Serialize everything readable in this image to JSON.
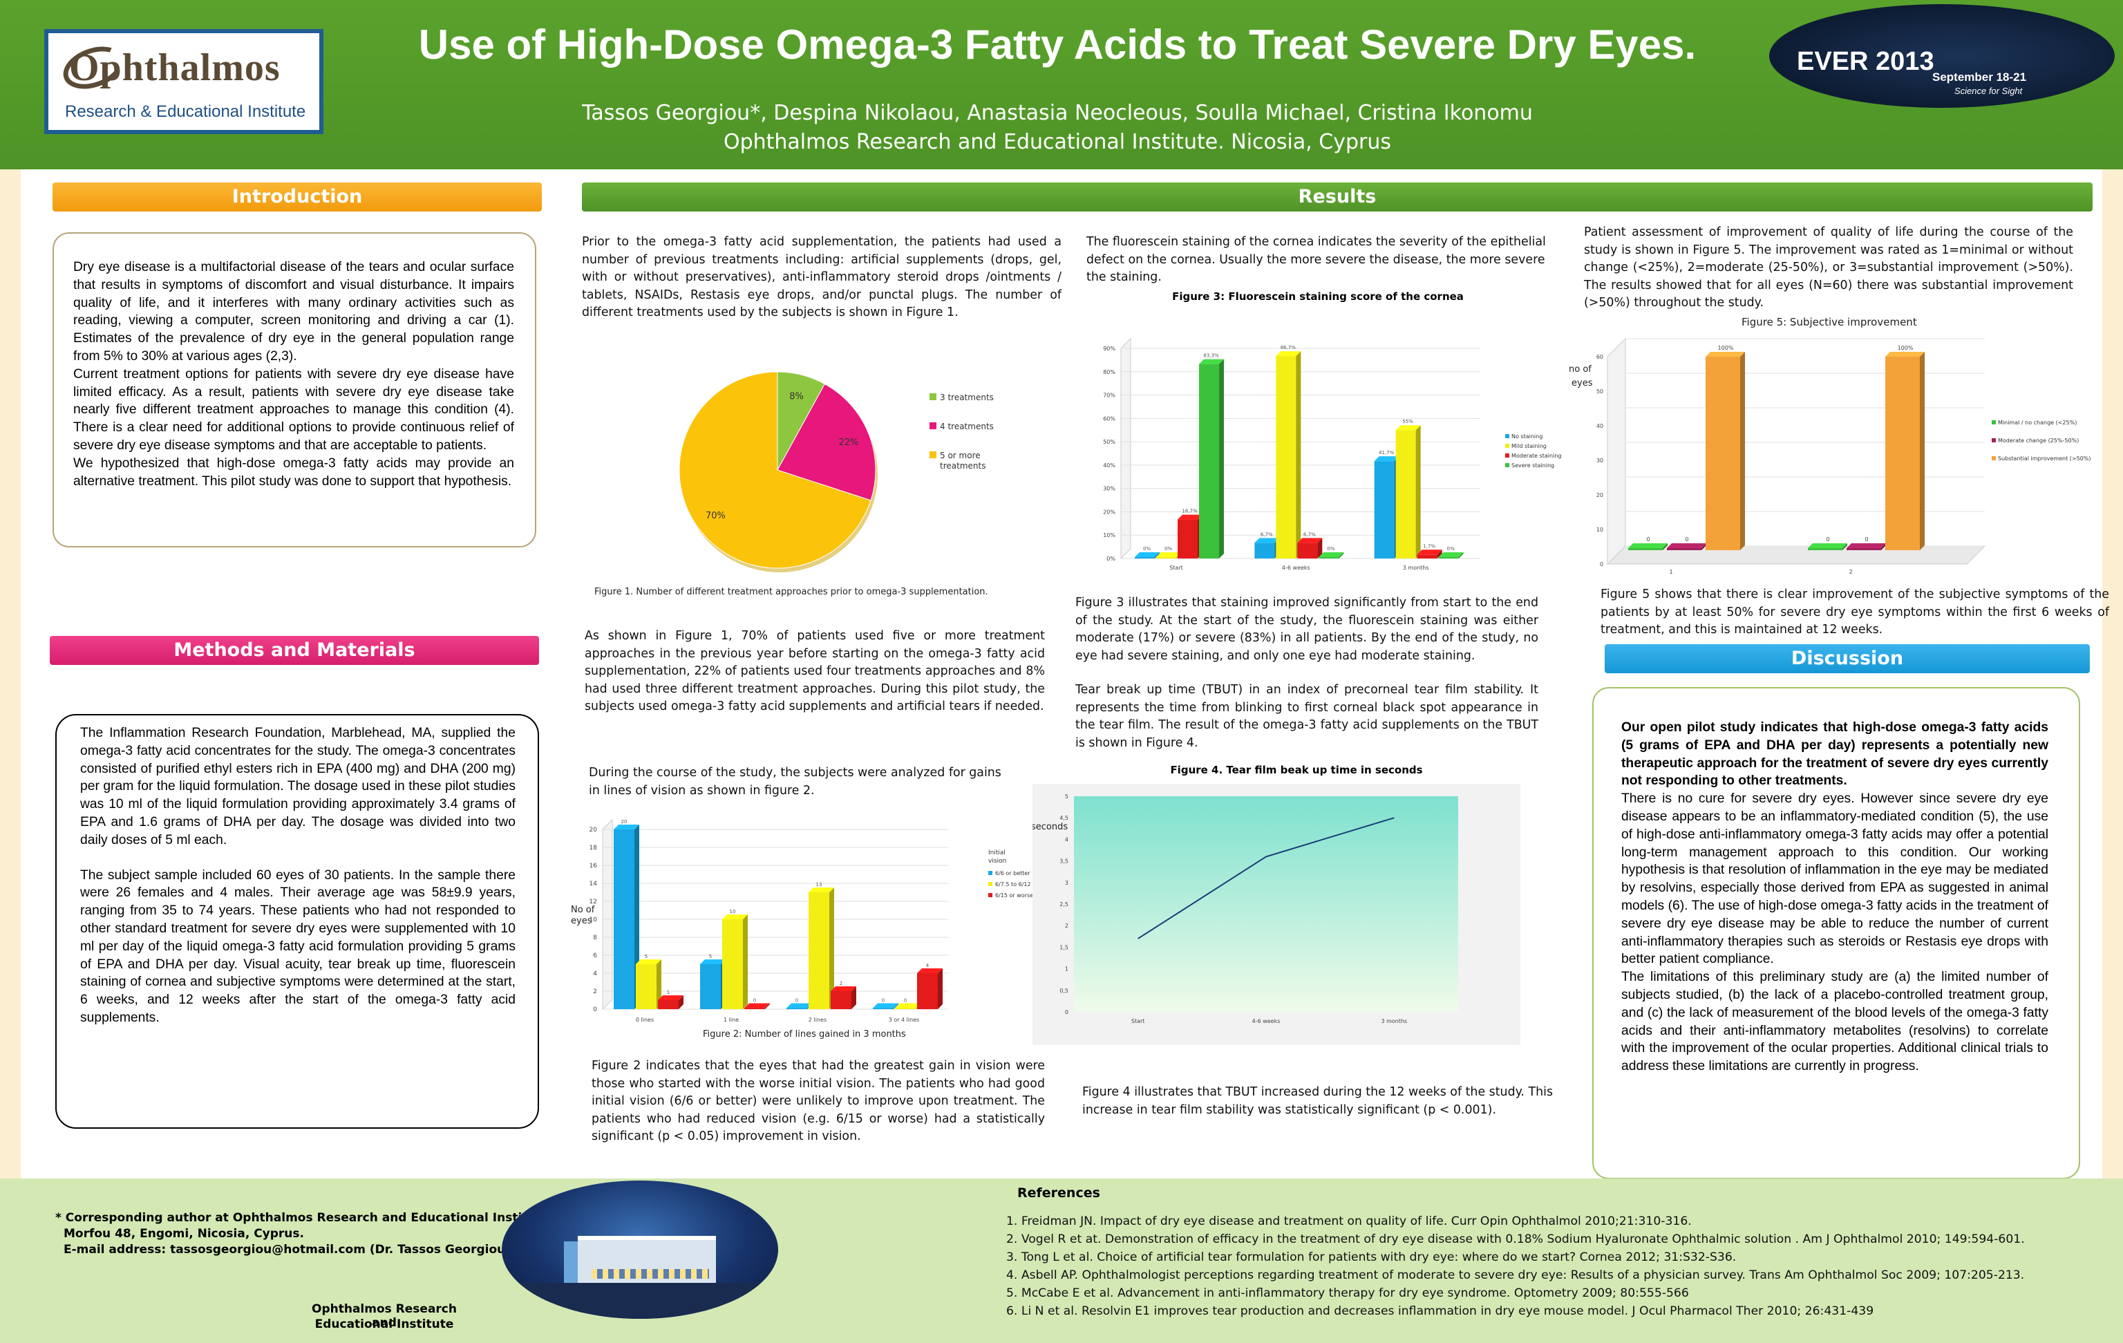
{
  "header": {
    "title": "Use of High-Dose Omega-3 Fatty Acids to Treat Severe Dry Eyes.",
    "authors": "Tassos Georgiou*,  Despina Nikolaou, Anastasia Neocleous, Soulla Michael, Cristina Ikonomu",
    "affiliation": "Ophthalmos Research and Educational Institute. Nicosia,  Cyprus",
    "logo_name": "Ophthalmos",
    "logo_sub": "Research & Educational Institute",
    "event_name": "EVER 2013",
    "event_dates": "September 18-21",
    "event_slogan": "Science for Sight"
  },
  "sections": {
    "introduction": "Introduction",
    "methods": "Methods and Materials",
    "results": "Results",
    "discussion": "Discussion"
  },
  "introduction": {
    "p1": "Dry eye disease is a multifactorial disease of the tears and ocular surface that results in symptoms of discomfort and visual disturbance. It impairs quality of life, and it interferes with many ordinary activities such as reading, viewing a computer, screen monitoring and driving a car (1). Estimates of the prevalence of dry eye in the general population range from 5% to 30% at various ages (2,3).",
    "p2": "Current treatment options for patients with severe dry eye disease have limited efficacy. As a result, patients with severe dry eye disease take nearly five different treatment approaches to manage this condition (4). There is a clear need for additional options to provide continuous relief of severe dry eye disease symptoms and that are acceptable to patients.",
    "p3": "We hypothesized that high-dose omega-3 fatty acids may provide an alternative treatment. This pilot study was done to support that hypothesis."
  },
  "methods": {
    "p1": "The Inflammation Research Foundation, Marblehead, MA, supplied the omega-3 fatty acid concentrates for the study.  The omega-3 concentrates consisted of purified ethyl esters rich in EPA (400 mg) and DHA (200 mg) per gram for the liquid formulation.  The dosage used in these pilot studies was 10 ml of the liquid formulation providing approximately 3.4 grams of EPA and 1.6 grams of DHA per day.  The dosage was divided into two daily doses of 5 ml each.",
    "p2": "The subject sample included 60 eyes of 30 patients. In the sample there were 26 females and 4 males. Their average age was 58±9.9 years, ranging from 35 to 74 years.   These patients who had not responded to other standard treatment for severe dry eyes were supplemented  with 10 ml per day of the liquid omega-3 fatty acid formulation providing 5 grams of EPA and DHA per day.   Visual acuity, tear break up time, fluorescein staining of cornea and subjective symptoms were determined at the start, 6 weeks, and 12 weeks after the start of the omega-3 fatty acid supplements."
  },
  "results": {
    "col1_p1": "Prior to the omega-3 fatty acid supplementation, the patients had used a number of previous treatments including: artificial supplements (drops, gel, with or without preservatives), anti-inflammatory steroid drops /ointments / tablets, NSAIDs, Restasis eye drops, and/or punctal plugs.  The number of different treatments used by the subjects is shown in Figure 1.",
    "fig1_caption": "Figure 1.  Number of different treatment approaches prior to omega-3 supplementation.",
    "col1_p2": "As shown in Figure 1, 70% of patients used five or more treatment approaches in the previous year before starting on the omega-3 fatty acid supplementation, 22% of patients used four treatments approaches and 8% had used three different treatment approaches.  During this pilot study, the subjects used  omega-3 fatty acid supplements and artificial tears if needed.",
    "col1_p3": "During the course of the study, the subjects were analyzed for gains in lines of vision as shown in figure 2.",
    "fig2_caption": "Figure 2: Number of lines gained in 3 months",
    "col1_p4": "Figure 2 indicates that the eyes that had the greatest gain in vision were those who started with the worse initial vision. The patients who had good initial vision (6/6 or better) were unlikely to improve upon treatment. The patients who had reduced vision (e.g. 6/15 or worse) had a statistically significant (p < 0.05) improvement in vision.",
    "col2_p1": "The fluorescein staining of the cornea indicates the severity of the epithelial defect on the cornea.  Usually the more severe the disease, the more severe the staining.",
    "fig3_title": "Figure 3: Fluorescein staining score of the cornea",
    "col2_p2": "Figure 3 illustrates that staining improved significantly from start to the end of the study. At the start of the study, the fluorescein staining was either moderate (17%) or severe (83%) in all patients.   By the end of the study, no eye had severe staining, and only one eye had moderate staining.",
    "col2_p3": "Tear break up time (TBUT) in an index of precorneal tear film stability. It represents the time from blinking to first corneal black spot appearance in the tear film.  The result of the omega-3 fatty acid supplements on the TBUT is shown in Figure 4.",
    "fig4_title": "Figure 4.  Tear film beak up time in seconds",
    "col2_p4": "Figure 4    illustrates that TBUT increased during the 12 weeks of the study.  This increase in tear film stability was statistically significant (p < 0.001).",
    "col3_p1": "Patient assessment of improvement of quality of life during the course of the study is shown in Figure 5. The improvement was rated as 1=minimal or without change (<25%), 2=moderate (25-50%), or 3=substantial improvement (>50%).  The results showed that for all eyes (N=60) there was substantial improvement (>50%) throughout the study.",
    "fig5_title": "Figure 5: Subjective improvement",
    "col3_p2": "Figure 5 shows that there is clear improvement of the subjective symptoms  of the patients by at least 50% for severe dry eye symptoms within the first 6 weeks of treatment, and this is maintained at 12 weeks."
  },
  "discussion": {
    "lead": "Our open pilot study indicates that high-dose omega-3 fatty acids (5 grams of EPA and DHA per day) represents a potentially new therapeutic approach for the treatment of severe dry eyes currently not responding to other treatments.",
    "p1": "There is no cure for severe dry eyes. However since severe  dry eye disease appears to be an inflammatory-mediated condition (5), the use of high-dose anti-inflammatory omega-3 fatty acids may offer a potential long-term management approach to this condition.   Our working hypothesis is that resolution of inflammation in the eye may be mediated by resolvins, especially those derived from EPA as suggested in animal models (6).  The use of high-dose omega-3 fatty acids in the treatment of severe dry eye disease may be able to reduce the number of current anti-inflammatory therapies such as steroids or Restasis eye drops with better patient compliance.",
    "p2": "The  limitations of this preliminary study are (a) the limited number of subjects studied, (b) the lack of a placebo-controlled treatment group, and (c) the lack of measurement of the blood levels of the omega-3 fatty acids and their anti-inflammatory metabolites (resolvins) to correlate with the improvement of the ocular properties.   Additional clinical trials to address these limitations are currently in progress."
  },
  "footer": {
    "corresponding_1": "* Corresponding author at Ophthalmos Research and Educational Institute.",
    "corresponding_2": "Morfou 48, Engomi, Nicosia,  Cyprus.",
    "corresponding_3": "E-mail address: tassosgeorgiou@hotmail.com (Dr. Tassos Georgiou)",
    "institute_1": "Ophthalmos Research and",
    "institute_2": "Educational Institute",
    "references_title": "References",
    "references": [
      "1. Freidman JN. Impact of dry eye disease and treatment on quality of life.  Curr Opin Ophthalmol 2010;21:310-316.",
      "2. Vogel R et at. Demonstration of efficacy in the treatment of dry eye disease with 0.18% Sodium Hyaluronate Ophthalmic solution . Am J Ophthalmol 2010; 149:594-601.",
      "3. Tong L et al. Choice of artificial tear formulation for patients with dry eye: where do we start? Cornea 2012; 31:S32-S36.",
      "4. Asbell AP. Ophthalmologist perceptions regarding treatment of moderate to severe dry eye:  Results of a physician survey. Trans Am Ophthalmol Soc 2009; 107:205-213.",
      "5. McCabe E et al.  Advancement in anti-inflammatory therapy for dry eye syndrome.  Optometry 2009; 80:555-566",
      "6.  Li N et al.  Resolvin E1 improves tear production and decreases inflammation in dry eye mouse model.  J Ocul Pharmacol Ther 2010; 26:431-439"
    ]
  },
  "chart_data": [
    {
      "id": "fig1",
      "type": "pie",
      "categories": [
        "3 treatments",
        "4 treatments",
        "5 or more treatments"
      ],
      "values": [
        8,
        22,
        70
      ],
      "value_labels": [
        "8%",
        "22%",
        "70%"
      ],
      "colors": [
        "#8dc63f",
        "#e8177b",
        "#fcc30b"
      ],
      "legend_position": "right"
    },
    {
      "id": "fig2",
      "type": "bar",
      "title": "Figure 2: Number of lines gained in 3 months",
      "ylabel": "No of eyes",
      "categories": [
        "0 lines",
        "1 line",
        "2 lines",
        "3 or 4 lines"
      ],
      "series": [
        {
          "name": "6/6 or better",
          "values": [
            20,
            5,
            0,
            0
          ],
          "color": "#1aa7e6"
        },
        {
          "name": "6/7.5 to 6/12",
          "values": [
            5,
            10,
            13,
            0
          ],
          "color": "#f3ef14"
        },
        {
          "name": "6/15 or worse",
          "values": [
            1,
            0,
            2,
            4
          ],
          "color": "#e31b1b"
        }
      ],
      "legend_title": "Initial vision",
      "ylim": [
        0,
        20
      ],
      "yticks": [
        0,
        2,
        4,
        6,
        8,
        10,
        12,
        14,
        16,
        18,
        20
      ]
    },
    {
      "id": "fig3",
      "type": "bar",
      "title": "Figure 3: Fluorescein staining score of the cornea",
      "categories": [
        "Start",
        "4-6 weeks",
        "3 months"
      ],
      "series": [
        {
          "name": "No staining",
          "values": [
            0,
            6.7,
            41.7
          ],
          "labels": [
            "0%",
            "6,7%",
            "41,7%"
          ],
          "color": "#1aa7e6"
        },
        {
          "name": "Mild staining",
          "values": [
            0,
            86.7,
            55
          ],
          "labels": [
            "0%",
            "86,7%",
            "55%"
          ],
          "color": "#f3ef14"
        },
        {
          "name": "Moderate staining",
          "values": [
            16.7,
            6.7,
            1.7
          ],
          "labels": [
            "16,7%",
            "6,7%",
            "1,7%"
          ],
          "color": "#e31b1b"
        },
        {
          "name": "Severe staining",
          "values": [
            83.3,
            0,
            0
          ],
          "labels": [
            "83,3%",
            "0%",
            "0%"
          ],
          "color": "#3cc13c"
        }
      ],
      "ylim": [
        0,
        90
      ],
      "yticks": [
        "0%",
        "10%",
        "20%",
        "30%",
        "40%",
        "50%",
        "60%",
        "70%",
        "80%",
        "90%"
      ]
    },
    {
      "id": "fig4",
      "type": "line",
      "title": "Figure 4.  Tear film beak up time in seconds",
      "ylabel": "seconds",
      "x": [
        "Start",
        "4-6 weeks",
        "3 months"
      ],
      "series": [
        {
          "values": [
            1.7,
            3.6,
            4.5
          ],
          "color": "#1a3d7a"
        }
      ],
      "ylim": [
        0,
        5
      ],
      "yticks": [
        "0",
        "0,5",
        "1",
        "1,5",
        "2",
        "2,5",
        "3",
        "3,5",
        "4",
        "4,5",
        "5"
      ]
    },
    {
      "id": "fig5",
      "type": "bar",
      "title": "Figure 5: Subjective improvement",
      "ylabel": "no of eyes",
      "categories": [
        "1",
        "2"
      ],
      "series": [
        {
          "name": "Minimal / no change (<25%)",
          "values": [
            0,
            0
          ],
          "labels": [
            "0",
            "0"
          ],
          "color": "#3cc13c"
        },
        {
          "name": "Moderate change (25%-50%)",
          "values": [
            0,
            0
          ],
          "labels": [
            "0",
            "0"
          ],
          "color": "#a3215c"
        },
        {
          "name": "Substantial improvement (>50%)",
          "values": [
            60,
            60
          ],
          "labels": [
            "100%",
            "100%"
          ],
          "color": "#f3a23a"
        }
      ],
      "ylim": [
        0,
        60
      ],
      "yticks": [
        0,
        10,
        20,
        30,
        40,
        50,
        60
      ]
    }
  ]
}
